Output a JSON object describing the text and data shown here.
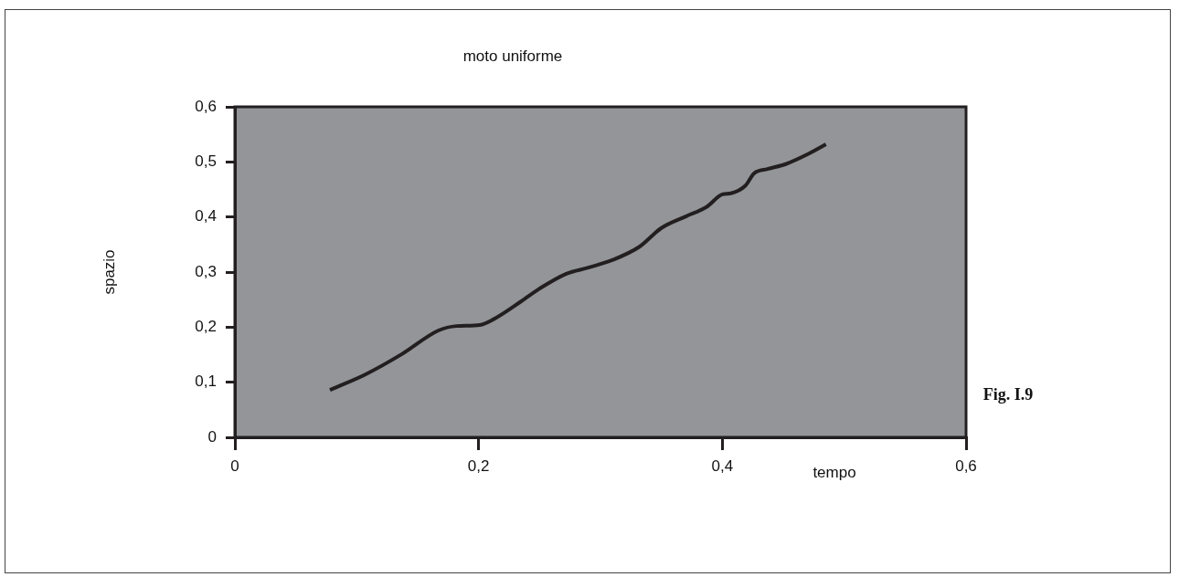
{
  "chart_data": {
    "type": "line",
    "title": "moto uniforme",
    "xlabel": "tempo",
    "ylabel": "spazio",
    "annotations": [
      "Fig. I.9"
    ],
    "x": [
      0.078,
      0.107,
      0.137,
      0.167,
      0.182,
      0.201,
      0.212,
      0.235,
      0.25,
      0.272,
      0.29,
      0.31,
      0.332,
      0.35,
      0.37,
      0.387,
      0.4,
      0.407,
      0.419,
      0.426,
      0.437,
      0.452,
      0.471,
      0.485
    ],
    "series": [
      {
        "color": "#231f20",
        "values": [
          0.086,
          0.114,
          0.151,
          0.194,
          0.202,
          0.204,
          0.214,
          0.247,
          0.27,
          0.297,
          0.308,
          0.322,
          0.346,
          0.38,
          0.401,
          0.418,
          0.441,
          0.443,
          0.457,
          0.479,
          0.487,
          0.496,
          0.515,
          0.532
        ]
      }
    ],
    "xlim": [
      0,
      0.6
    ],
    "ylim": [
      0,
      0.6
    ],
    "xticks": [
      0,
      {
        "value": 0.2,
        "label": "0,2"
      },
      {
        "value": 0.4,
        "label": "0,4"
      },
      {
        "value": 0.6,
        "label": "0,6"
      }
    ],
    "yticks": [
      0,
      {
        "value": 0.1,
        "label": "0,1"
      },
      {
        "value": 0.2,
        "label": "0,2"
      },
      {
        "value": 0.3,
        "label": "0,3"
      },
      {
        "value": 0.4,
        "label": "0,4"
      },
      {
        "value": 0.5,
        "label": "0,5"
      },
      {
        "value": 0.6,
        "label": "0,6"
      }
    ],
    "grid": false,
    "legend": false,
    "marker": "none",
    "line_style": "solid"
  }
}
